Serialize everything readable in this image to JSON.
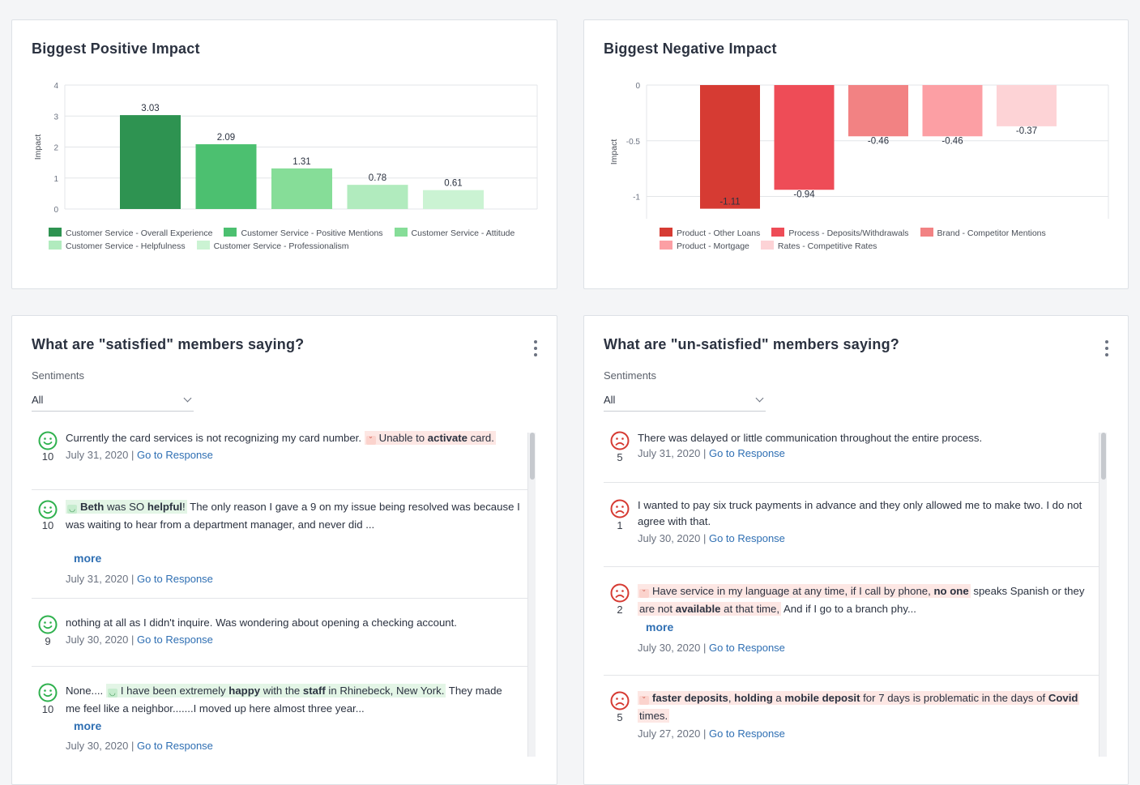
{
  "positive_card": {
    "title": "Biggest Positive Impact"
  },
  "negative_card": {
    "title": "Biggest Negative Impact"
  },
  "chart_data": [
    {
      "type": "bar",
      "title": "Biggest Positive Impact",
      "ylabel": "Impact",
      "ylim": [
        0,
        4
      ],
      "yticks": [
        0,
        1,
        2,
        3,
        4
      ],
      "categories": [
        "Customer Service - Overall Experience",
        "Customer Service - Positive Mentions",
        "Customer Service - Attitude",
        "Customer Service - Helpfulness",
        "Customer Service - Professionalism"
      ],
      "values": [
        3.03,
        2.09,
        1.31,
        0.78,
        0.61
      ],
      "colors": [
        "#2e9351",
        "#4cc070",
        "#86dd98",
        "#b1ebbe",
        "#cbf3d3"
      ],
      "grid": true,
      "legend": "bottom"
    },
    {
      "type": "bar",
      "title": "Biggest Negative Impact",
      "ylabel": "Impact",
      "ylim": [
        -1.2,
        0
      ],
      "yticks": [
        0,
        -0.5,
        -1
      ],
      "categories": [
        "Product - Other Loans",
        "Process - Deposits/Withdrawals",
        "Brand - Competitor Mentions",
        "Product - Mortgage",
        "Rates - Competitive Rates"
      ],
      "values": [
        -1.11,
        -0.94,
        -0.46,
        -0.46,
        -0.37
      ],
      "colors": [
        "#d63b33",
        "#ee4c57",
        "#f28283",
        "#fc9fa4",
        "#fdd3d6"
      ],
      "grid": true,
      "legend": "bottom"
    }
  ],
  "satisfied": {
    "title": "What are \"satisfied\" members saying?",
    "sentiments_label": "Sentiments",
    "filter_value": "All",
    "go_label": "Go to Response",
    "more_label": "more",
    "items": [
      {
        "score": "10",
        "date": "July 31, 2020",
        "parts": [
          "Currently the card services is not recognizing my card number. ",
          "Unable to ",
          "activate",
          " card."
        ]
      },
      {
        "score": "10",
        "date": "July 31, 2020",
        "parts": [
          "Beth",
          " was SO ",
          "helpful",
          "!",
          " The only reason I gave a 9 on my issue being resolved was because I",
          "was waiting to hear from a department manager, and never did ..."
        ]
      },
      {
        "score": "9",
        "date": "July 30, 2020",
        "parts": [
          "nothing at all as I didn't inquire. Was wondering about opening a checking account."
        ]
      },
      {
        "score": "10",
        "date": "July 30, 2020",
        "parts": [
          "None.... ",
          "I have been extremely ",
          "happy",
          " with the ",
          "staff",
          " in Rhinebeck, New York.",
          " They made",
          "me feel like a neighbor.......I moved up here almost three year..."
        ]
      }
    ]
  },
  "unsatisfied": {
    "title": "What are \"un-satisfied\" members saying?",
    "sentiments_label": "Sentiments",
    "filter_value": "All",
    "go_label": "Go to Response",
    "more_label": "more",
    "items": [
      {
        "score": "5",
        "date": "July 31, 2020",
        "parts": [
          "There was delayed or little communication throughout the entire process."
        ]
      },
      {
        "score": "1",
        "date": "July 30, 2020",
        "parts": [
          "I wanted to pay six truck payments in advance and they only allowed me to make two. I do not",
          "agree with that."
        ]
      },
      {
        "score": "2",
        "date": "July 30, 2020",
        "parts": [
          "Have service in my language at any time, if I call by phone, ",
          "no one",
          " speaks Spanish or they",
          "are not ",
          "available",
          " at that time,",
          " And if I go to a branch phy..."
        ]
      },
      {
        "score": "5",
        "date": "July 27, 2020",
        "parts": [
          "faster deposits",
          ", ",
          "holding",
          " a ",
          "mobile deposit",
          " for 7 days is problematic in the days of ",
          "Covid",
          "times."
        ]
      }
    ]
  }
}
